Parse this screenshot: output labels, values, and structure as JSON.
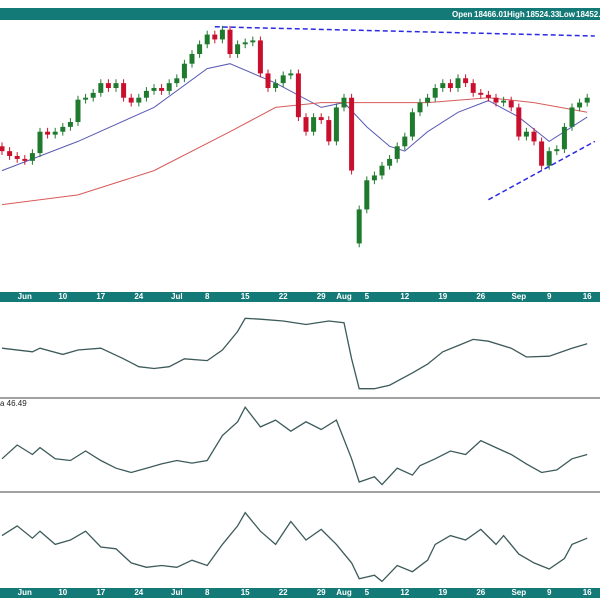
{
  "header": {
    "items": [
      {
        "label": "Open",
        "value": "18466.01"
      },
      {
        "label": "High",
        "value": "18524.33"
      },
      {
        "label": "Low",
        "value": "18452."
      }
    ]
  },
  "chart_data": {
    "type": "candlestick",
    "categories": [
      null,
      null,
      null,
      "Jun",
      null,
      null,
      null,
      null,
      "10",
      null,
      null,
      null,
      null,
      "17",
      null,
      null,
      null,
      null,
      "24",
      null,
      null,
      null,
      null,
      "Jul",
      null,
      null,
      null,
      "8",
      null,
      null,
      null,
      null,
      "15",
      null,
      null,
      null,
      null,
      "22",
      null,
      null,
      null,
      null,
      "29",
      null,
      null,
      "Aug",
      null,
      null,
      "5",
      null,
      null,
      null,
      null,
      "12",
      null,
      null,
      null,
      null,
      "19",
      null,
      null,
      null,
      null,
      "26",
      null,
      null,
      null,
      null,
      "Sep",
      null,
      null,
      null,
      "9",
      null,
      null,
      null,
      null,
      "16"
    ],
    "open": [
      18300,
      18280,
      18260,
      18248,
      18240,
      18272,
      18360,
      18348,
      18360,
      18380,
      18400,
      18492,
      18500,
      18520,
      18560,
      18540,
      18560,
      18500,
      18480,
      18500,
      18528,
      18540,
      18528,
      18560,
      18580,
      18640,
      18680,
      18720,
      18760,
      18740,
      18780,
      18680,
      18720,
      18728,
      18736,
      18600,
      18540,
      18560,
      18592,
      18600,
      18420,
      18360,
      18420,
      18408,
      18320,
      18460,
      18500,
      17900,
      18040,
      18160,
      18180,
      18220,
      18248,
      18300,
      18340,
      18440,
      18480,
      18500,
      18540,
      18560,
      18540,
      18580,
      18560,
      18520,
      18512,
      18500,
      18480,
      18488,
      18460,
      18340,
      18360,
      18320,
      18220,
      18280,
      18288,
      18380,
      18460,
      18480
    ],
    "high": [
      18316,
      18296,
      18276,
      18264,
      18288,
      18376,
      18376,
      18376,
      18396,
      18416,
      18508,
      18516,
      18536,
      18576,
      18576,
      18576,
      18576,
      18516,
      18516,
      18544,
      18556,
      18556,
      18576,
      18596,
      18656,
      18696,
      18736,
      18776,
      18776,
      18796,
      18796,
      18736,
      18744,
      18752,
      18752,
      18616,
      18576,
      18608,
      18616,
      18616,
      18436,
      18436,
      18436,
      18424,
      18476,
      18516,
      18516,
      18056,
      18176,
      18196,
      18236,
      18264,
      18316,
      18356,
      18456,
      18496,
      18516,
      18556,
      18576,
      18576,
      18596,
      18596,
      18576,
      18536,
      18528,
      18516,
      18504,
      18504,
      18476,
      18376,
      18376,
      18336,
      18296,
      18304,
      18396,
      18476,
      18496,
      18516
    ],
    "low": [
      18264,
      18244,
      18232,
      18224,
      18224,
      18256,
      18332,
      18332,
      18344,
      18364,
      18384,
      18476,
      18484,
      18504,
      18524,
      18524,
      18484,
      18464,
      18464,
      18484,
      18512,
      18512,
      18512,
      18544,
      18564,
      18624,
      18664,
      18704,
      18724,
      18724,
      18664,
      18664,
      18704,
      18712,
      18584,
      18524,
      18524,
      18544,
      18576,
      18404,
      18344,
      18344,
      18392,
      18304,
      18304,
      18444,
      18184,
      17884,
      18024,
      18144,
      18164,
      18204,
      18232,
      18284,
      18324,
      18424,
      18464,
      18484,
      18524,
      18524,
      18524,
      18544,
      18504,
      18496,
      18484,
      18464,
      18464,
      18444,
      18324,
      18324,
      18304,
      18204,
      18204,
      18264,
      18272,
      18364,
      18444,
      18464
    ],
    "close": [
      18280,
      18260,
      18248,
      18240,
      18272,
      18360,
      18348,
      18360,
      18380,
      18400,
      18492,
      18500,
      18520,
      18560,
      18540,
      18560,
      18500,
      18480,
      18500,
      18528,
      18540,
      18528,
      18560,
      18580,
      18640,
      18680,
      18720,
      18760,
      18740,
      18780,
      18680,
      18720,
      18728,
      18736,
      18600,
      18540,
      18560,
      18592,
      18600,
      18420,
      18360,
      18420,
      18408,
      18320,
      18460,
      18500,
      18200,
      18040,
      18160,
      18180,
      18220,
      18248,
      18300,
      18340,
      18440,
      18480,
      18500,
      18540,
      18560,
      18540,
      18580,
      18560,
      18520,
      18512,
      18500,
      18480,
      18488,
      18460,
      18340,
      18360,
      18320,
      18220,
      18280,
      18288,
      18380,
      18460,
      18480,
      18500
    ],
    "up_color": "#1f7a2e",
    "down_color": "#c8102e",
    "ylim": [
      17700,
      18820
    ],
    "overlays": [
      {
        "color": "#5a5ab4",
        "x": [
          0,
          10,
          20,
          27,
          30,
          36,
          42,
          45,
          48,
          51,
          53,
          56,
          60,
          64,
          68,
          72,
          77
        ],
        "values": [
          18200,
          18320,
          18460,
          18620,
          18640,
          18560,
          18460,
          18480,
          18380,
          18300,
          18280,
          18360,
          18440,
          18488,
          18420,
          18320,
          18420
        ]
      },
      {
        "color": "#d85a5a",
        "x": [
          0,
          10,
          20,
          30,
          36,
          42,
          48,
          56,
          64,
          70,
          77
        ],
        "values": [
          18060,
          18100,
          18200,
          18360,
          18460,
          18480,
          18480,
          18480,
          18500,
          18480,
          18440
        ]
      }
    ],
    "trendlines": [
      {
        "color": "#2a2ae0",
        "x": [
          28,
          78
        ],
        "values": [
          18792,
          18754
        ]
      },
      {
        "color": "#2a2ae0",
        "x": [
          64,
          78
        ],
        "values": [
          18080,
          18320
        ]
      }
    ],
    "panels": [
      {
        "type": "line",
        "color": "#3d5a5a",
        "ylim": [
          0,
          100
        ],
        "x": [
          0,
          4,
          5,
          8,
          10,
          13,
          16,
          18,
          20,
          22,
          24,
          27,
          29,
          31,
          32,
          34,
          37,
          40,
          43,
          45,
          46,
          47,
          49,
          51,
          54,
          56,
          58,
          60,
          62,
          64,
          67,
          69,
          72,
          75,
          77
        ],
        "values": [
          52,
          48,
          52,
          45,
          50,
          52,
          40,
          31,
          29,
          31,
          40,
          38,
          50,
          71,
          86,
          85,
          83,
          79,
          83,
          81,
          40,
          6,
          6,
          10,
          24,
          34,
          48,
          55,
          62,
          60,
          52,
          42,
          43,
          52,
          57
        ]
      },
      {
        "type": "line",
        "color": "#3d5a5a",
        "label": "a 46.49",
        "ylim": [
          0,
          100
        ],
        "x": [
          0,
          2,
          4,
          5,
          7,
          9,
          11,
          13,
          15,
          17,
          19,
          21,
          23,
          25,
          27,
          29,
          31,
          32,
          34,
          36,
          38,
          40,
          42,
          44,
          46,
          47,
          49,
          50,
          52,
          54,
          55,
          57,
          59,
          61,
          63,
          65,
          67,
          69,
          71,
          73,
          75,
          77
        ],
        "values": [
          34,
          50,
          39,
          47,
          34,
          32,
          43,
          32,
          23,
          18,
          23,
          28,
          32,
          29,
          32,
          61,
          77,
          94,
          71,
          79,
          66,
          77,
          68,
          79,
          34,
          7,
          13,
          4,
          23,
          15,
          26,
          34,
          43,
          39,
          55,
          47,
          39,
          28,
          18,
          21,
          34,
          39
        ]
      },
      {
        "type": "line",
        "color": "#3d5a5a",
        "ylim": [
          0,
          100
        ],
        "x": [
          0,
          2,
          4,
          5,
          7,
          9,
          11,
          13,
          15,
          17,
          19,
          21,
          23,
          25,
          27,
          29,
          31,
          32,
          34,
          36,
          38,
          40,
          42,
          44,
          46,
          47,
          49,
          50,
          52,
          54,
          56,
          57,
          59,
          61,
          63,
          65,
          66,
          68,
          70,
          72,
          74,
          75,
          77
        ],
        "values": [
          55,
          66,
          52,
          60,
          45,
          50,
          60,
          42,
          40,
          24,
          19,
          21,
          19,
          27,
          21,
          45,
          66,
          81,
          60,
          45,
          71,
          50,
          62,
          45,
          24,
          6,
          10,
          3,
          21,
          14,
          27,
          45,
          55,
          50,
          62,
          45,
          55,
          34,
          24,
          17,
          29,
          45,
          52
        ]
      }
    ]
  }
}
